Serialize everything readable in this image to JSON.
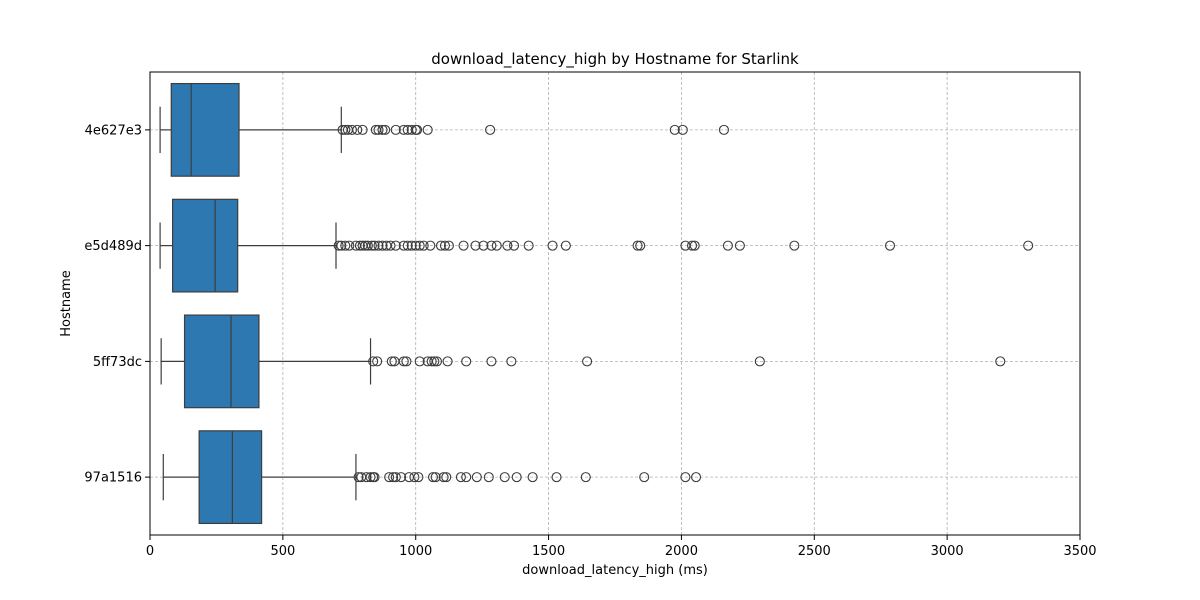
{
  "chart_data": {
    "type": "box",
    "orientation": "horizontal",
    "title": "download_latency_high by Hostname for Starlink",
    "xlabel": "download_latency_high (ms)",
    "ylabel": "Hostname",
    "xlim": [
      0,
      3500
    ],
    "xticks": [
      0,
      500,
      1000,
      1500,
      2000,
      2500,
      3000,
      3500
    ],
    "grid": true,
    "box_color": "#2e78b2",
    "categories": [
      "4e627e3",
      "e5d489d",
      "5ff73dc",
      "97a1516"
    ],
    "series": [
      {
        "category": "4e627e3",
        "whisker_low": 38,
        "q1": 80,
        "median": 155,
        "q3": 335,
        "whisker_high": 720,
        "outliers": [
          725,
          735,
          745,
          760,
          780,
          800,
          850,
          860,
          875,
          885,
          925,
          955,
          970,
          985,
          1000,
          1005,
          1045,
          1280,
          1975,
          2005,
          2160
        ]
      },
      {
        "category": "e5d489d",
        "whisker_low": 38,
        "q1": 85,
        "median": 245,
        "q3": 330,
        "whisker_high": 700,
        "outliers": [
          710,
          720,
          735,
          750,
          775,
          790,
          800,
          810,
          820,
          835,
          845,
          860,
          875,
          890,
          905,
          925,
          955,
          970,
          985,
          1000,
          1015,
          1030,
          1055,
          1095,
          1110,
          1125,
          1180,
          1225,
          1255,
          1285,
          1305,
          1345,
          1370,
          1425,
          1515,
          1565,
          1835,
          1845,
          2015,
          2040,
          2050,
          2175,
          2220,
          2425,
          2785,
          3305
        ]
      },
      {
        "category": "5ff73dc",
        "whisker_low": 42,
        "q1": 130,
        "median": 305,
        "q3": 410,
        "whisker_high": 830,
        "outliers": [
          840,
          855,
          910,
          920,
          955,
          965,
          1015,
          1045,
          1060,
          1070,
          1080,
          1120,
          1190,
          1285,
          1360,
          1645,
          2295,
          3200
        ]
      },
      {
        "category": "97a1516",
        "whisker_low": 50,
        "q1": 185,
        "median": 310,
        "q3": 420,
        "whisker_high": 775,
        "outliers": [
          785,
          795,
          815,
          830,
          840,
          845,
          900,
          915,
          925,
          945,
          975,
          995,
          1010,
          1065,
          1075,
          1105,
          1115,
          1170,
          1190,
          1230,
          1275,
          1335,
          1380,
          1440,
          1530,
          1640,
          1860,
          2015,
          2055
        ]
      }
    ]
  }
}
